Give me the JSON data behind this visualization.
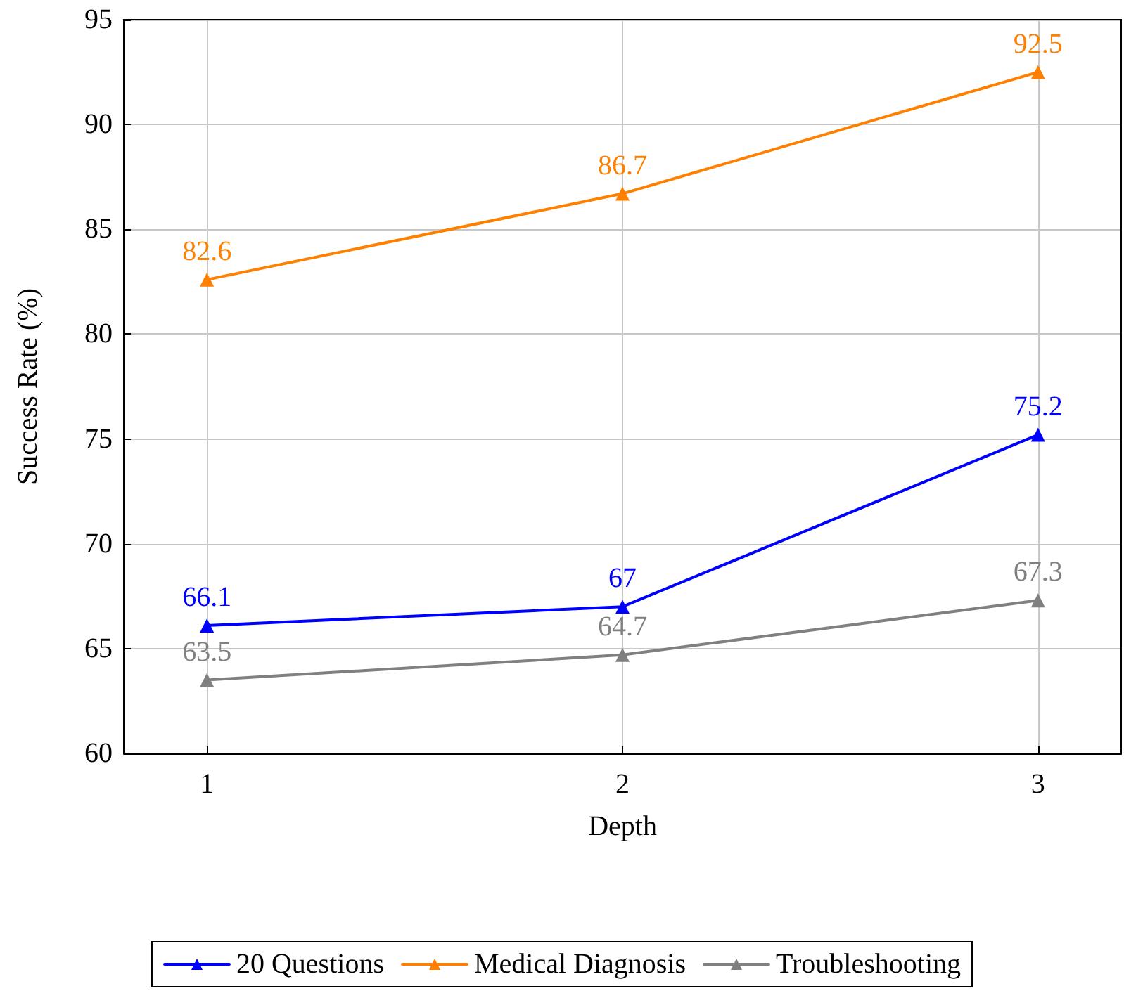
{
  "chart_data": {
    "type": "line",
    "xlabel": "Depth",
    "ylabel": "Success Rate (%)",
    "x": [
      1,
      2,
      3
    ],
    "xlim": [
      0.8,
      3.2
    ],
    "xticks": [
      1,
      2,
      3
    ],
    "ylim": [
      60,
      95
    ],
    "yticks": [
      60,
      65,
      70,
      75,
      80,
      85,
      90,
      95
    ],
    "grid": true,
    "legend": "bottom",
    "marker": "triangle",
    "line_style": "solid",
    "data_labels": true,
    "series": [
      {
        "name": "20 Questions",
        "color": "#0000ff",
        "values": [
          66.1,
          67,
          75.2
        ]
      },
      {
        "name": "Medical Diagnosis",
        "color": "#ff8000",
        "values": [
          82.6,
          86.7,
          92.5
        ]
      },
      {
        "name": "Troubleshooting",
        "color": "#808080",
        "values": [
          63.5,
          64.7,
          67.3
        ]
      }
    ]
  }
}
